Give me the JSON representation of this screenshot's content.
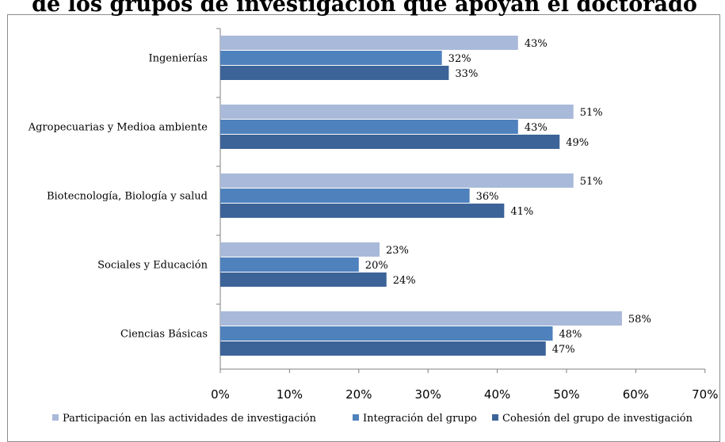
{
  "chart_data": {
    "type": "bar",
    "orientation": "horizontal",
    "title": "de los grupos de investigación que apoyan el doctorado",
    "categories": [
      "Ingenierías",
      "Agropecuarias y Medioa ambiente",
      "Biotecnología,  Biología  y salud",
      "Sociales y Educación",
      "Ciencias Básicas"
    ],
    "series": [
      {
        "name": "Participación en las actividades de investigación",
        "color": "#a9b9d9",
        "values": [
          43,
          51,
          51,
          23,
          58
        ]
      },
      {
        "name": "Integración del grupo",
        "color": "#4f81bd",
        "values": [
          32,
          43,
          36,
          20,
          48
        ]
      },
      {
        "name": "Cohesión del grupo de investigación",
        "color": "#3c6498",
        "values": [
          33,
          49,
          41,
          24,
          47
        ]
      }
    ],
    "value_labels": [
      [
        "43%",
        "32%",
        "33%"
      ],
      [
        "51%",
        "43%",
        "49%"
      ],
      [
        "51%",
        "36%",
        "41%"
      ],
      [
        "23%",
        "20%",
        "24%"
      ],
      [
        "58%",
        "48%",
        "47%"
      ]
    ],
    "x_ticks": [
      "0%",
      "10%",
      "20%",
      "30%",
      "40%",
      "50%",
      "60%",
      "70%"
    ],
    "xlim": [
      0,
      70
    ],
    "grid": false,
    "legend_position": "bottom"
  }
}
